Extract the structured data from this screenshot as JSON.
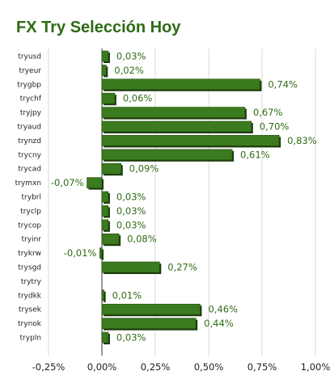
{
  "chart_data": {
    "type": "bar",
    "orientation": "horizontal",
    "title": "FX Try Selección Hoy",
    "xlabel": "",
    "ylabel": "",
    "xlim": [
      -0.25,
      1.0
    ],
    "xticks": [
      -0.25,
      0.0,
      0.25,
      0.5,
      0.75,
      1.0
    ],
    "xtick_labels": [
      "-0,25%",
      "0,00%",
      "0,25%",
      "0,50%",
      "0,75%",
      "1,00%"
    ],
    "grid": true,
    "legend": "none",
    "bar_color": "#3b7a1e",
    "categories": [
      "tryusd",
      "tryeur",
      "trygbp",
      "trychf",
      "tryjpy",
      "tryaud",
      "trynzd",
      "trycny",
      "trycad",
      "trymxn",
      "trybrl",
      "tryclp",
      "trycop",
      "tryinr",
      "trykrw",
      "trysgd",
      "trytry",
      "trydkk",
      "trysek",
      "trynok",
      "trypln"
    ],
    "values": [
      0.03,
      0.02,
      0.74,
      0.06,
      0.67,
      0.7,
      0.83,
      0.61,
      0.09,
      -0.07,
      0.03,
      0.03,
      0.03,
      0.08,
      -0.01,
      0.27,
      0.0,
      0.01,
      0.46,
      0.44,
      0.03
    ],
    "value_labels": [
      "0,03%",
      "0,02%",
      "0,74%",
      "0,06%",
      "0,67%",
      "0,70%",
      "0,83%",
      "0,61%",
      "0,09%",
      "-0,07%",
      "0,03%",
      "0,03%",
      "0,03%",
      "0,08%",
      "-0,01%",
      "0,27%",
      "",
      "0,01%",
      "0,46%",
      "0,44%",
      "0,03%"
    ]
  }
}
